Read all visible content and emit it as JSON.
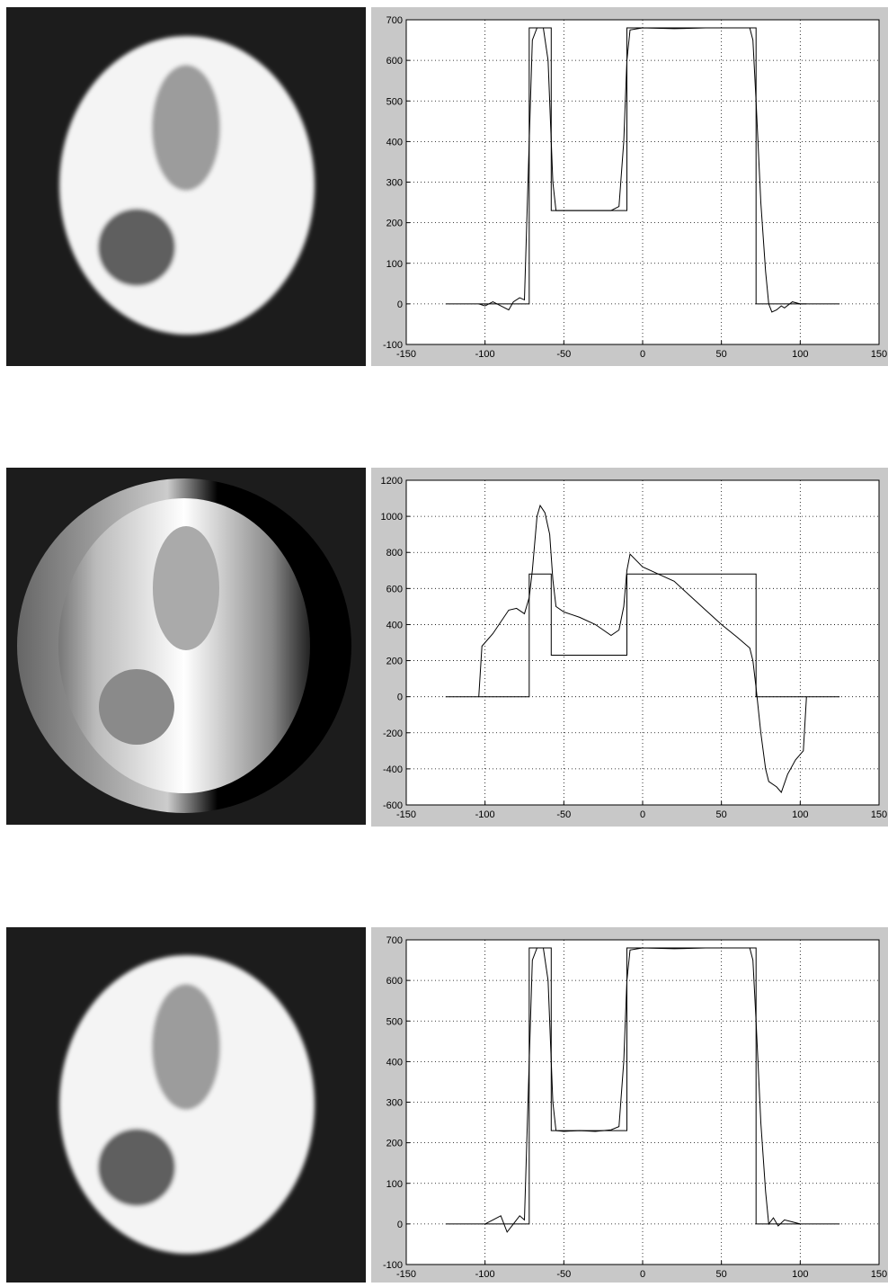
{
  "chart_data": [
    {
      "type": "line",
      "xlim": [
        -150,
        150
      ],
      "xticks": [
        -150,
        -100,
        -50,
        0,
        50,
        100,
        150
      ],
      "ylim": [
        -100,
        700
      ],
      "yticks": [
        -100,
        0,
        100,
        200,
        300,
        400,
        500,
        600,
        700
      ],
      "grid": true,
      "series": [
        {
          "color": "#000000",
          "x": [
            -125,
            -72,
            -72,
            -58,
            -58,
            -10,
            -10,
            72,
            72,
            125
          ],
          "values": [
            0,
            0,
            680,
            680,
            230,
            230,
            680,
            680,
            0,
            0
          ]
        },
        {
          "color": "#000000",
          "x": [
            -104,
            -100,
            -95,
            -90,
            -85,
            -82,
            -78,
            -75,
            -72,
            -70,
            -67,
            -63,
            -60,
            -57,
            -55,
            -50,
            -40,
            -30,
            -20,
            -15,
            -12,
            -10,
            -8,
            0,
            20,
            40,
            60,
            68,
            70,
            72,
            75,
            78,
            80,
            82,
            85,
            88,
            90,
            95,
            100,
            104
          ],
          "values": [
            0,
            -5,
            5,
            -5,
            -15,
            5,
            15,
            10,
            400,
            650,
            680,
            680,
            600,
            300,
            230,
            230,
            230,
            230,
            230,
            240,
            400,
            600,
            675,
            680,
            678,
            680,
            680,
            680,
            650,
            500,
            250,
            80,
            0,
            -20,
            -15,
            -5,
            -10,
            5,
            0,
            0
          ]
        }
      ]
    },
    {
      "type": "line",
      "xlim": [
        -150,
        150
      ],
      "xticks": [
        -150,
        -100,
        -50,
        0,
        50,
        100,
        150
      ],
      "ylim": [
        -600,
        1200
      ],
      "yticks": [
        -600,
        -400,
        -200,
        0,
        200,
        400,
        600,
        800,
        1000,
        1200
      ],
      "grid": true,
      "series": [
        {
          "color": "#000000",
          "x": [
            -125,
            -72,
            -72,
            -58,
            -58,
            -10,
            -10,
            72,
            72,
            125
          ],
          "values": [
            0,
            0,
            680,
            680,
            230,
            230,
            680,
            680,
            0,
            0
          ]
        },
        {
          "color": "#000000",
          "x": [
            -104,
            -102,
            -95,
            -85,
            -80,
            -75,
            -72,
            -70,
            -67,
            -65,
            -62,
            -59,
            -57,
            -55,
            -50,
            -40,
            -30,
            -20,
            -15,
            -12,
            -10,
            -8,
            0,
            10,
            20,
            30,
            40,
            50,
            60,
            68,
            70,
            72,
            75,
            78,
            80,
            85,
            88,
            92,
            97,
            102,
            104
          ],
          "values": [
            0,
            280,
            350,
            480,
            490,
            460,
            550,
            700,
            1000,
            1060,
            1020,
            900,
            650,
            500,
            470,
            440,
            400,
            340,
            370,
            500,
            700,
            790,
            720,
            680,
            640,
            560,
            480,
            400,
            330,
            270,
            200,
            50,
            -200,
            -400,
            -470,
            -500,
            -530,
            -430,
            -350,
            -300,
            0
          ]
        }
      ]
    },
    {
      "type": "line",
      "xlim": [
        -150,
        150
      ],
      "xticks": [
        -150,
        -100,
        -50,
        0,
        50,
        100,
        150
      ],
      "ylim": [
        -100,
        700
      ],
      "yticks": [
        -100,
        0,
        100,
        200,
        300,
        400,
        500,
        600,
        700
      ],
      "grid": true,
      "series": [
        {
          "color": "#000000",
          "x": [
            -125,
            -72,
            -72,
            -58,
            -58,
            -10,
            -10,
            72,
            72,
            125
          ],
          "values": [
            0,
            0,
            680,
            680,
            230,
            230,
            680,
            680,
            0,
            0
          ]
        },
        {
          "color": "#000000",
          "x": [
            -100,
            -95,
            -90,
            -86,
            -82,
            -78,
            -75,
            -72,
            -70,
            -67,
            -63,
            -60,
            -57,
            -55,
            -50,
            -40,
            -30,
            -20,
            -15,
            -12,
            -10,
            -8,
            0,
            20,
            40,
            60,
            68,
            70,
            72,
            75,
            78,
            80,
            83,
            86,
            90,
            95,
            100
          ],
          "values": [
            0,
            10,
            20,
            -20,
            0,
            20,
            10,
            400,
            650,
            680,
            680,
            600,
            300,
            230,
            228,
            230,
            228,
            232,
            240,
            400,
            600,
            675,
            680,
            678,
            680,
            680,
            680,
            650,
            500,
            250,
            80,
            0,
            15,
            -5,
            10,
            5,
            0
          ]
        }
      ]
    }
  ]
}
